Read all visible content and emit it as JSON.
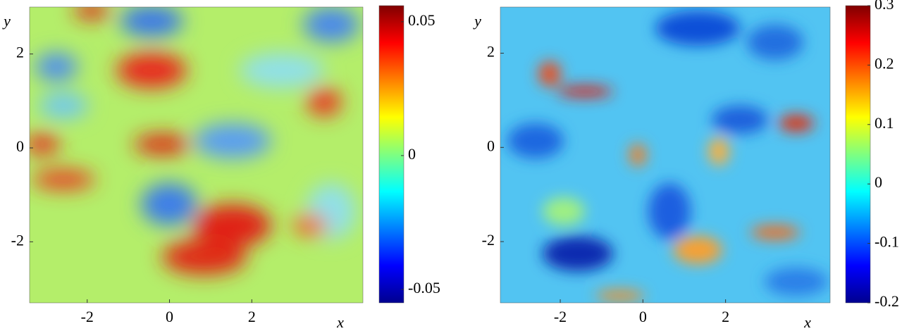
{
  "chart_data": [
    {
      "type": "heatmap",
      "xlabel": "x",
      "ylabel": "y",
      "xlim": [
        -3.4,
        4.7
      ],
      "ylim": [
        -3.3,
        3.0
      ],
      "xticks": [
        -2,
        0,
        2
      ],
      "yticks": [
        -2,
        0,
        2
      ],
      "colormap": "jet",
      "clim": [
        -0.055,
        0.056
      ],
      "cticks": [
        -0.05,
        0,
        0.05
      ]
    },
    {
      "type": "heatmap",
      "xlabel": "x",
      "ylabel": "y",
      "xlim": [
        -3.45,
        4.53
      ],
      "ylim": [
        -3.3,
        2.98
      ],
      "xticks": [
        -2,
        0,
        2
      ],
      "yticks": [
        -2,
        0,
        2
      ],
      "colormap": "jet",
      "clim": [
        -0.2,
        0.3
      ],
      "cticks": [
        -0.2,
        -0.1,
        0,
        0.1,
        0.2,
        0.3
      ]
    }
  ]
}
